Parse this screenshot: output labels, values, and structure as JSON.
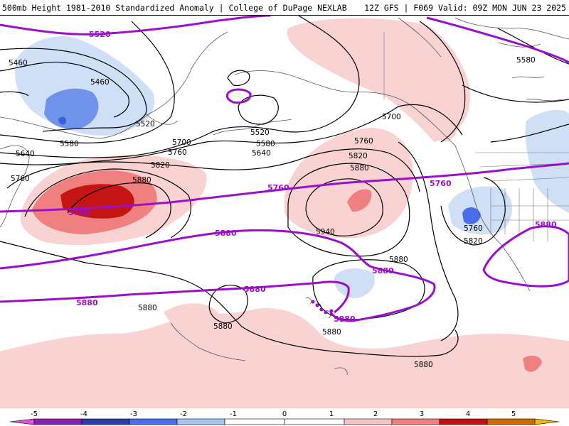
{
  "header": {
    "left_title": "500mb Height 1981-2010 Standardized Anomaly | College of DuPage NEXLAB",
    "right_title": "12Z GFS | F069 Valid: 09Z MON JUN 23 2025"
  },
  "contours": {
    "black_labels": [
      {
        "id": "c1",
        "text": "5460"
      },
      {
        "id": "c2",
        "text": "5460"
      },
      {
        "id": "c3",
        "text": "5520"
      },
      {
        "id": "c4",
        "text": "5520"
      },
      {
        "id": "c5",
        "text": "5580"
      },
      {
        "id": "c6",
        "text": "5580"
      },
      {
        "id": "c7",
        "text": "5640"
      },
      {
        "id": "c8",
        "text": "5640"
      },
      {
        "id": "c9",
        "text": "5700"
      },
      {
        "id": "c10",
        "text": "5700"
      },
      {
        "id": "c11",
        "text": "5760"
      },
      {
        "id": "c12",
        "text": "5760"
      },
      {
        "id": "c13",
        "text": "5820"
      },
      {
        "id": "c14",
        "text": "5880"
      },
      {
        "id": "c15",
        "text": "5760"
      },
      {
        "id": "c16",
        "text": "5820"
      },
      {
        "id": "c17",
        "text": "5880"
      },
      {
        "id": "c18",
        "text": "5940"
      },
      {
        "id": "c19",
        "text": "5580"
      },
      {
        "id": "c20",
        "text": "5760"
      },
      {
        "id": "c21",
        "text": "5820"
      },
      {
        "id": "c22",
        "text": "5880"
      },
      {
        "id": "c23",
        "text": "5880"
      },
      {
        "id": "c24",
        "text": "5880"
      },
      {
        "id": "c25",
        "text": "5880"
      },
      {
        "id": "c26",
        "text": "5880"
      },
      {
        "id": "c27",
        "text": "5760"
      }
    ],
    "purple_labels": [
      {
        "id": "p1",
        "text": "5520"
      },
      {
        "id": "p2",
        "text": "5760"
      },
      {
        "id": "p3",
        "text": "5760"
      },
      {
        "id": "p4",
        "text": "5760"
      },
      {
        "id": "p5",
        "text": "5880"
      },
      {
        "id": "p6",
        "text": "5880"
      },
      {
        "id": "p7",
        "text": "5880"
      },
      {
        "id": "p8",
        "text": "5880"
      },
      {
        "id": "p9",
        "text": "5880"
      },
      {
        "id": "p10",
        "text": "5880"
      }
    ]
  },
  "colorbar": {
    "ticks": [
      "-5",
      "-4",
      "-3",
      "-2",
      "-1",
      "0",
      "1",
      "2",
      "3",
      "4",
      "5"
    ],
    "colors": [
      "#e64fd8",
      "#8a1fb0",
      "#2b3ea6",
      "#4a6ee8",
      "#a8c4f0",
      "#ffffff",
      "#f8c4c4",
      "#f08080",
      "#c01010",
      "#d06a00",
      "#f0b800"
    ]
  },
  "colors": {
    "purple_contour": "#9a10c8",
    "black_contour": "#000000",
    "coast": "#555555"
  }
}
